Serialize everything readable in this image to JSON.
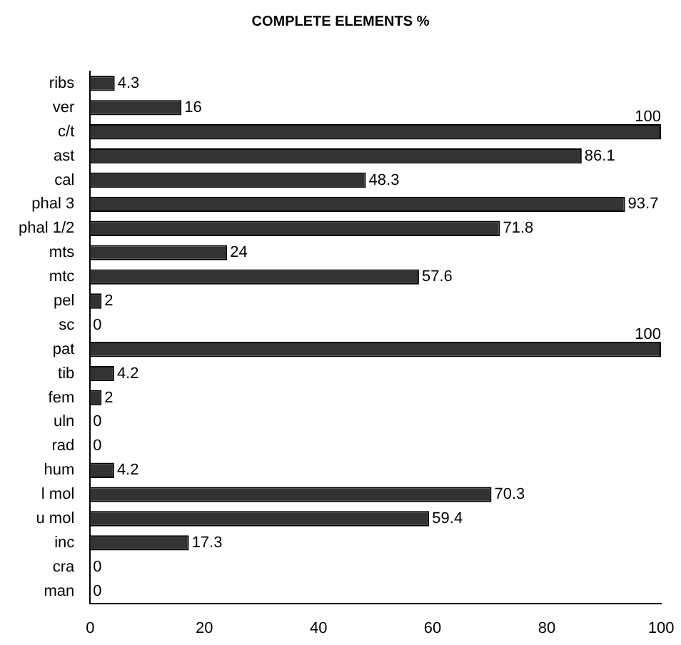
{
  "chart_data": {
    "type": "bar",
    "orientation": "horizontal",
    "title": "COMPLETE ELEMENTS %",
    "categories": [
      "ribs",
      "ver",
      "c/t",
      "ast",
      "cal",
      "phal 3",
      "phal 1/2",
      "mts",
      "mtc",
      "pel",
      "sc",
      "pat",
      "tib",
      "fem",
      "uln",
      "rad",
      "hum",
      "l mol",
      "u mol",
      "inc",
      "cra",
      "man"
    ],
    "values": [
      4.3,
      16,
      100,
      86.1,
      48.3,
      93.7,
      71.8,
      24,
      57.6,
      2,
      0,
      100,
      4.2,
      2,
      0,
      0,
      4.2,
      70.3,
      59.4,
      17.3,
      0,
      0
    ],
    "color": "#333333",
    "xlim": [
      0,
      100
    ],
    "xticks": [
      0,
      20,
      40,
      60,
      80,
      100
    ],
    "grid": false,
    "legend": false,
    "data_labels": true
  }
}
